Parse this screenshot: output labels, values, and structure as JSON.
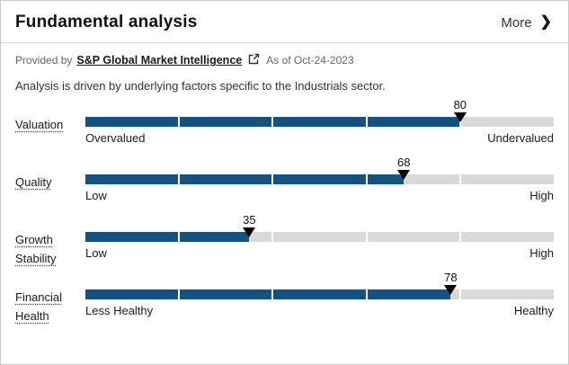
{
  "header": {
    "title": "Fundamental analysis",
    "more_label": "More",
    "chevron_glyph": "❯"
  },
  "provider": {
    "prefix": "Provided by",
    "link_label": "S&P Global Market Intelligence",
    "as_of": "As of Oct-24-2023"
  },
  "description": "Analysis is driven by underlying factors specific to the Industrials sector.",
  "colors": {
    "bar_fill": "#17527d",
    "bar_track": "#d9d9d9",
    "marker": "#000000"
  },
  "chart_data": {
    "type": "bar",
    "title": "Fundamental analysis",
    "range": [
      0,
      100
    ],
    "segments": 5,
    "metrics": [
      {
        "label": "Valuation",
        "value": 80,
        "left_label": "Overvalued",
        "right_label": "Undervalued"
      },
      {
        "label": "Quality",
        "value": 68,
        "left_label": "Low",
        "right_label": "High"
      },
      {
        "label": "Growth Stability",
        "value": 35,
        "left_label": "Low",
        "right_label": "High"
      },
      {
        "label": "Financial Health",
        "value": 78,
        "left_label": "Less Healthy",
        "right_label": "Healthy"
      }
    ]
  }
}
